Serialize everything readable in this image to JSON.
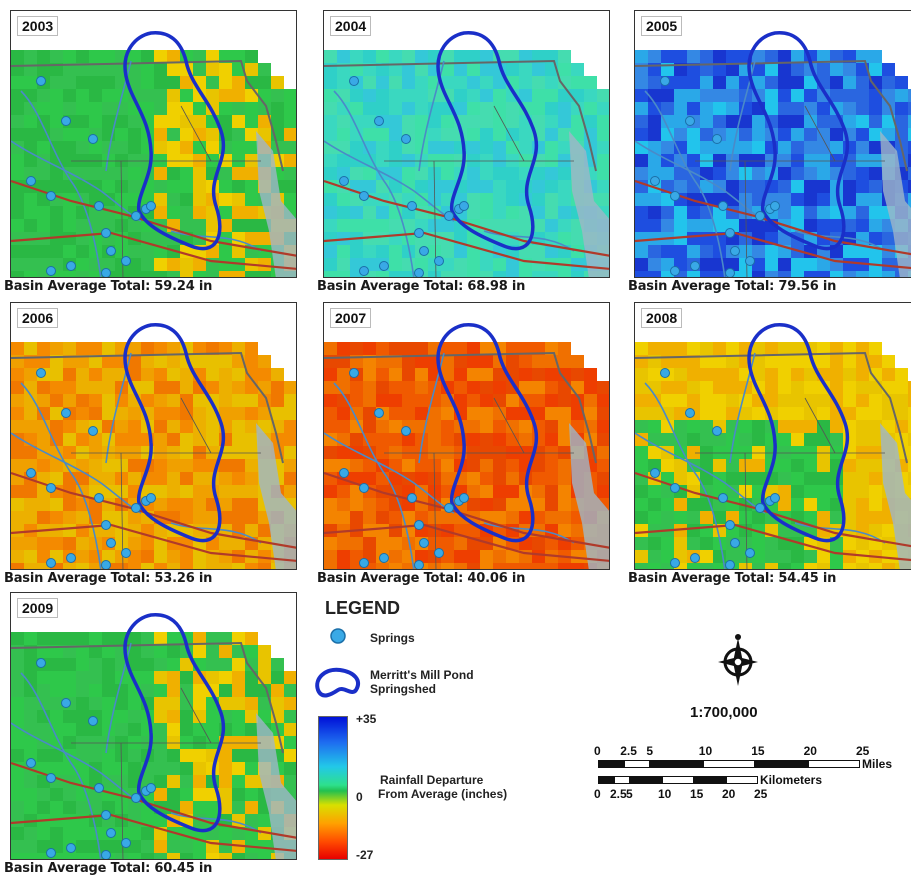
{
  "panels": [
    {
      "year": "2003",
      "caption": "Basin Average Total: 59.24 in",
      "palette": "mixed-green"
    },
    {
      "year": "2004",
      "caption": "Basin Average Total: 68.98 in",
      "palette": "cyan"
    },
    {
      "year": "2005",
      "caption": "Basin Average Total: 79.56 in",
      "palette": "blue"
    },
    {
      "year": "2006",
      "caption": "Basin Average Total: 53.26 in",
      "palette": "orange"
    },
    {
      "year": "2007",
      "caption": "Basin Average Total: 40.06 in",
      "palette": "red"
    },
    {
      "year": "2008",
      "caption": "Basin Average Total: 54.45 in",
      "palette": "mixed-orange"
    },
    {
      "year": "2009",
      "caption": "Basin Average Total: 60.45 in",
      "palette": "mixed-green"
    }
  ],
  "legend": {
    "title": "LEGEND",
    "springs_label": "Springs",
    "springshed_line1": "Merritt's Mill Pond",
    "springshed_line2": "Springshed",
    "ramp_max": "+35",
    "ramp_mid": "0",
    "ramp_min": "-27",
    "ramp_line1": "Rainfall Departure",
    "ramp_line2": "From Average (inches)"
  },
  "scale": {
    "ratio": "1:700,000",
    "miles_ticks": [
      "0",
      "2.5",
      "5",
      "10",
      "15",
      "20",
      "25"
    ],
    "miles_unit": "Miles",
    "km_unit": "Kilometers",
    "km_ticks": [
      "0",
      "2.5",
      "5",
      "10",
      "15",
      "20",
      "25"
    ]
  },
  "colors": {
    "springshed": "#1a2fc8",
    "spring": "#39a9e6",
    "rivers": "#4a8ac8",
    "roads": "#b03a2a",
    "boundary": "#666666"
  }
}
